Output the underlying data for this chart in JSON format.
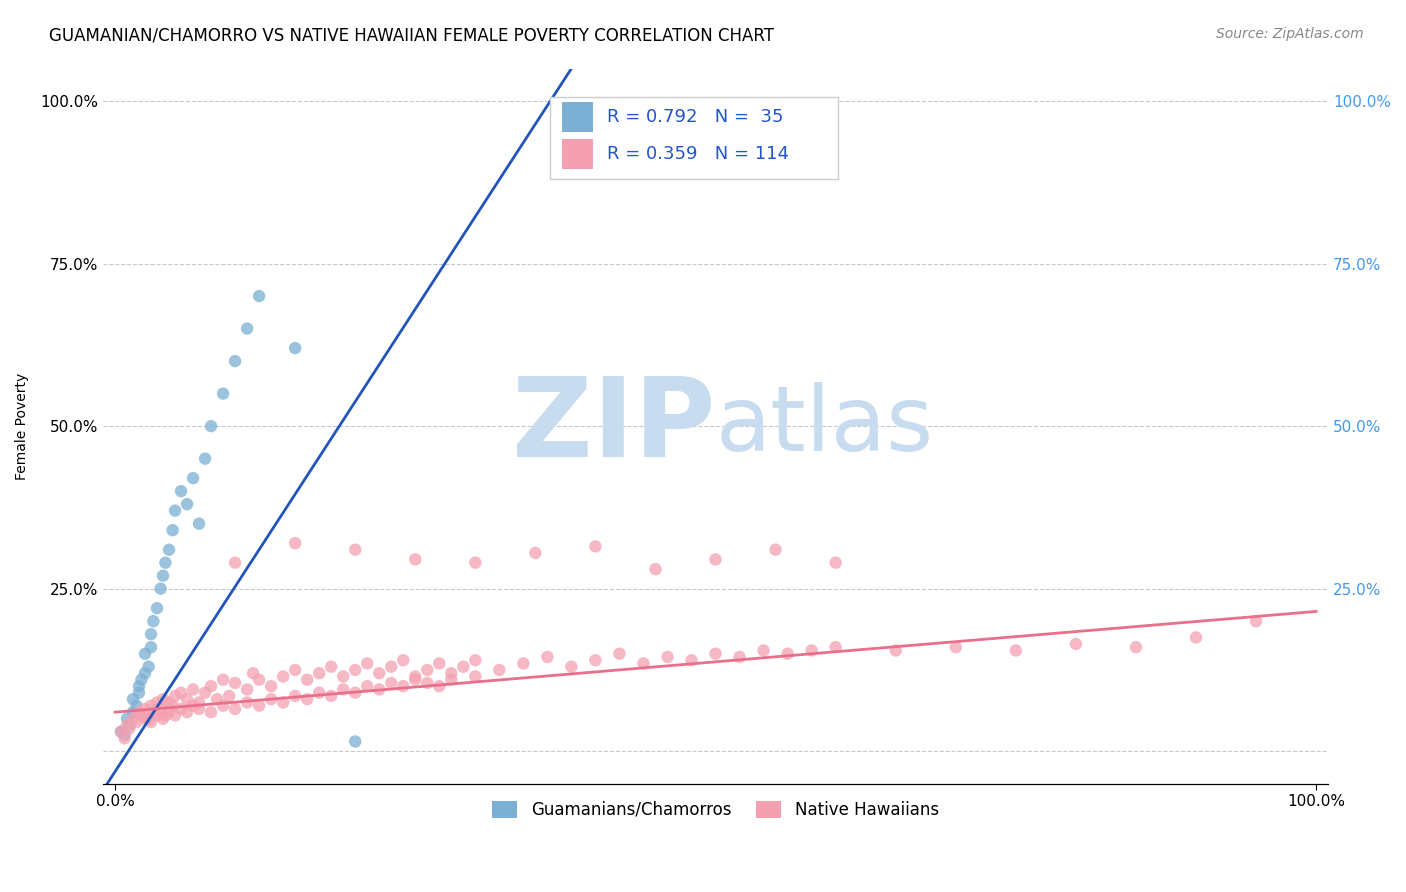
{
  "title": "GUAMANIAN/CHAMORRO VS NATIVE HAWAIIAN FEMALE POVERTY CORRELATION CHART",
  "source": "Source: ZipAtlas.com",
  "ylabel": "Female Poverty",
  "legend_label1": "Guamanians/Chamorros",
  "legend_label2": "Native Hawaiians",
  "R1": "0.792",
  "N1": "35",
  "R2": "0.359",
  "N2": "114",
  "color_blue": "#7BAFD4",
  "color_pink": "#F4A0B0",
  "color_blue_line": "#2255BB",
  "color_pink_line": "#E8708A",
  "watermark_zip": "ZIP",
  "watermark_atlas": "atlas",
  "watermark_color": "#C8DCF0",
  "background_color": "#FFFFFF",
  "grid_color": "#BBBBBB",
  "blue_scatter_x": [
    0.005,
    0.008,
    0.01,
    0.012,
    0.015,
    0.015,
    0.018,
    0.02,
    0.02,
    0.022,
    0.025,
    0.025,
    0.028,
    0.03,
    0.03,
    0.032,
    0.035,
    0.038,
    0.04,
    0.042,
    0.045,
    0.048,
    0.05,
    0.055,
    0.06,
    0.065,
    0.07,
    0.075,
    0.08,
    0.09,
    0.1,
    0.11,
    0.12,
    0.15,
    0.2
  ],
  "blue_scatter_y": [
    0.03,
    0.025,
    0.05,
    0.04,
    0.06,
    0.08,
    0.07,
    0.09,
    0.1,
    0.11,
    0.12,
    0.15,
    0.13,
    0.16,
    0.18,
    0.2,
    0.22,
    0.25,
    0.27,
    0.29,
    0.31,
    0.34,
    0.37,
    0.4,
    0.38,
    0.42,
    0.35,
    0.45,
    0.5,
    0.55,
    0.6,
    0.65,
    0.7,
    0.62,
    0.015
  ],
  "pink_scatter_x": [
    0.005,
    0.008,
    0.01,
    0.012,
    0.015,
    0.018,
    0.02,
    0.022,
    0.025,
    0.028,
    0.03,
    0.032,
    0.035,
    0.038,
    0.04,
    0.042,
    0.045,
    0.048,
    0.05,
    0.055,
    0.06,
    0.065,
    0.07,
    0.075,
    0.08,
    0.085,
    0.09,
    0.095,
    0.1,
    0.11,
    0.115,
    0.12,
    0.13,
    0.14,
    0.15,
    0.16,
    0.17,
    0.18,
    0.19,
    0.2,
    0.21,
    0.22,
    0.23,
    0.24,
    0.25,
    0.26,
    0.27,
    0.28,
    0.29,
    0.3,
    0.32,
    0.34,
    0.36,
    0.38,
    0.4,
    0.42,
    0.44,
    0.46,
    0.48,
    0.5,
    0.52,
    0.54,
    0.56,
    0.58,
    0.6,
    0.65,
    0.7,
    0.75,
    0.8,
    0.85,
    0.9,
    0.95,
    0.1,
    0.15,
    0.2,
    0.25,
    0.3,
    0.35,
    0.4,
    0.45,
    0.5,
    0.55,
    0.6,
    0.025,
    0.03,
    0.035,
    0.04,
    0.045,
    0.05,
    0.055,
    0.06,
    0.065,
    0.07,
    0.08,
    0.09,
    0.1,
    0.11,
    0.12,
    0.13,
    0.14,
    0.15,
    0.16,
    0.17,
    0.18,
    0.19,
    0.2,
    0.21,
    0.22,
    0.23,
    0.24,
    0.25,
    0.26,
    0.27,
    0.28,
    0.3
  ],
  "pink_scatter_y": [
    0.03,
    0.02,
    0.04,
    0.035,
    0.05,
    0.045,
    0.06,
    0.055,
    0.065,
    0.05,
    0.07,
    0.06,
    0.075,
    0.065,
    0.08,
    0.055,
    0.075,
    0.07,
    0.085,
    0.09,
    0.08,
    0.095,
    0.075,
    0.09,
    0.1,
    0.08,
    0.11,
    0.085,
    0.105,
    0.095,
    0.12,
    0.11,
    0.1,
    0.115,
    0.125,
    0.11,
    0.12,
    0.13,
    0.115,
    0.125,
    0.135,
    0.12,
    0.13,
    0.14,
    0.115,
    0.125,
    0.135,
    0.12,
    0.13,
    0.14,
    0.125,
    0.135,
    0.145,
    0.13,
    0.14,
    0.15,
    0.135,
    0.145,
    0.14,
    0.15,
    0.145,
    0.155,
    0.15,
    0.155,
    0.16,
    0.155,
    0.16,
    0.155,
    0.165,
    0.16,
    0.175,
    0.2,
    0.29,
    0.32,
    0.31,
    0.295,
    0.29,
    0.305,
    0.315,
    0.28,
    0.295,
    0.31,
    0.29,
    0.05,
    0.045,
    0.055,
    0.05,
    0.06,
    0.055,
    0.065,
    0.06,
    0.07,
    0.065,
    0.06,
    0.07,
    0.065,
    0.075,
    0.07,
    0.08,
    0.075,
    0.085,
    0.08,
    0.09,
    0.085,
    0.095,
    0.09,
    0.1,
    0.095,
    0.105,
    0.1,
    0.11,
    0.105,
    0.1,
    0.11,
    0.115
  ],
  "blue_line_x": [
    -0.01,
    0.38
  ],
  "blue_line_y": [
    -0.06,
    1.05
  ],
  "pink_line_x": [
    0.0,
    1.0
  ],
  "pink_line_y": [
    0.06,
    0.215
  ],
  "xlim": [
    -0.01,
    1.01
  ],
  "ylim": [
    -0.05,
    1.05
  ],
  "x_ticks": [
    0.0,
    1.0
  ],
  "x_tick_labels": [
    "0.0%",
    "100.0%"
  ],
  "y_ticks": [
    0.0,
    0.25,
    0.5,
    0.75,
    1.0
  ],
  "y_tick_labels_left": [
    "",
    "25.0%",
    "50.0%",
    "75.0%",
    "100.0%"
  ],
  "y_tick_labels_right": [
    "",
    "25.0%",
    "50.0%",
    "75.0%",
    "100.0%"
  ],
  "title_fontsize": 12,
  "axis_label_fontsize": 10,
  "tick_fontsize": 11,
  "legend_fontsize": 12,
  "source_fontsize": 10,
  "rn_fontsize": 13
}
